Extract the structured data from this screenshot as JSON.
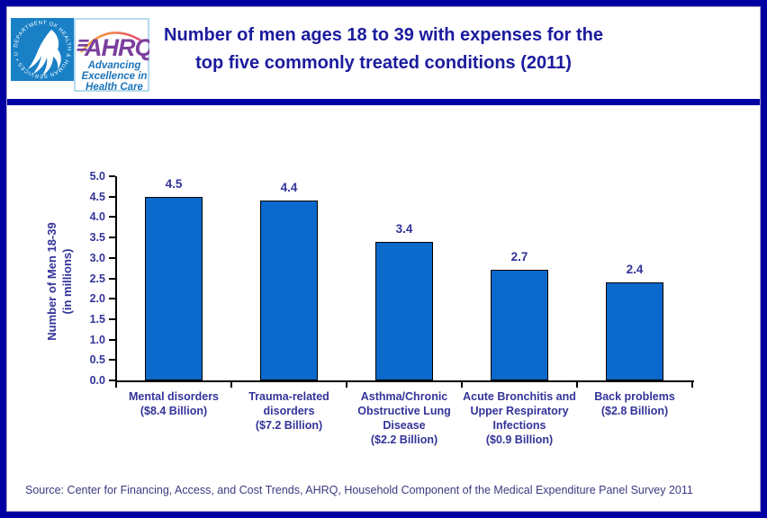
{
  "logos": {
    "hhs": {
      "circular_text": "DEPARTMENT OF HEALTH & HUMAN SERVICES • USA"
    },
    "ahrq": {
      "acronym": "AHRQ",
      "tagline_lines": [
        "Advancing",
        "Excellence in",
        "Health Care"
      ]
    }
  },
  "chart_data": {
    "type": "bar",
    "title": "Number of men ages 18 to 39 with expenses for the\ntop five commonly treated conditions (2011)",
    "categories": [
      "Mental disorders\n($8.4 Billion)",
      "Trauma-related\ndisorders\n($7.2 Billion)",
      "Asthma/Chronic\nObstructive Lung\nDisease\n($2.2 Billion)",
      "Acute Bronchitis and\nUpper Respiratory\nInfections\n($0.9 Billion)",
      "Back problems\n($2.8 Billion)"
    ],
    "values": [
      4.5,
      4.4,
      3.4,
      2.7,
      2.4
    ],
    "value_labels": [
      "4.5",
      "4.4",
      "3.4",
      "2.7",
      "2.4"
    ],
    "xlabel": "",
    "ylabel": "Number of Men 18-39\n(in millions)",
    "ylim": [
      0,
      5
    ],
    "yticks": [
      "0.0",
      "0.5",
      "1.0",
      "1.5",
      "2.0",
      "2.5",
      "3.0",
      "3.5",
      "4.0",
      "4.5",
      "5.0"
    ],
    "grid": false,
    "legend": "none",
    "bar_color": "#0A69CA"
  },
  "source": {
    "text": "Source: Center for Financing, Access, and Cost Trends, AHRQ, Household Component of the Medical Expenditure Panel Survey 2011"
  },
  "colors": {
    "navy": "#0000A2",
    "title_text": "#1B1B9E",
    "chart_text": "#333399",
    "source_text": "#3A3A80",
    "hhs_blue": "#1980C6",
    "ahrq_purple": "#7B3F9E",
    "ahrq_blue": "#1B75BB",
    "arc_start": "#F9B233",
    "arc_end": "#E84B6F"
  }
}
